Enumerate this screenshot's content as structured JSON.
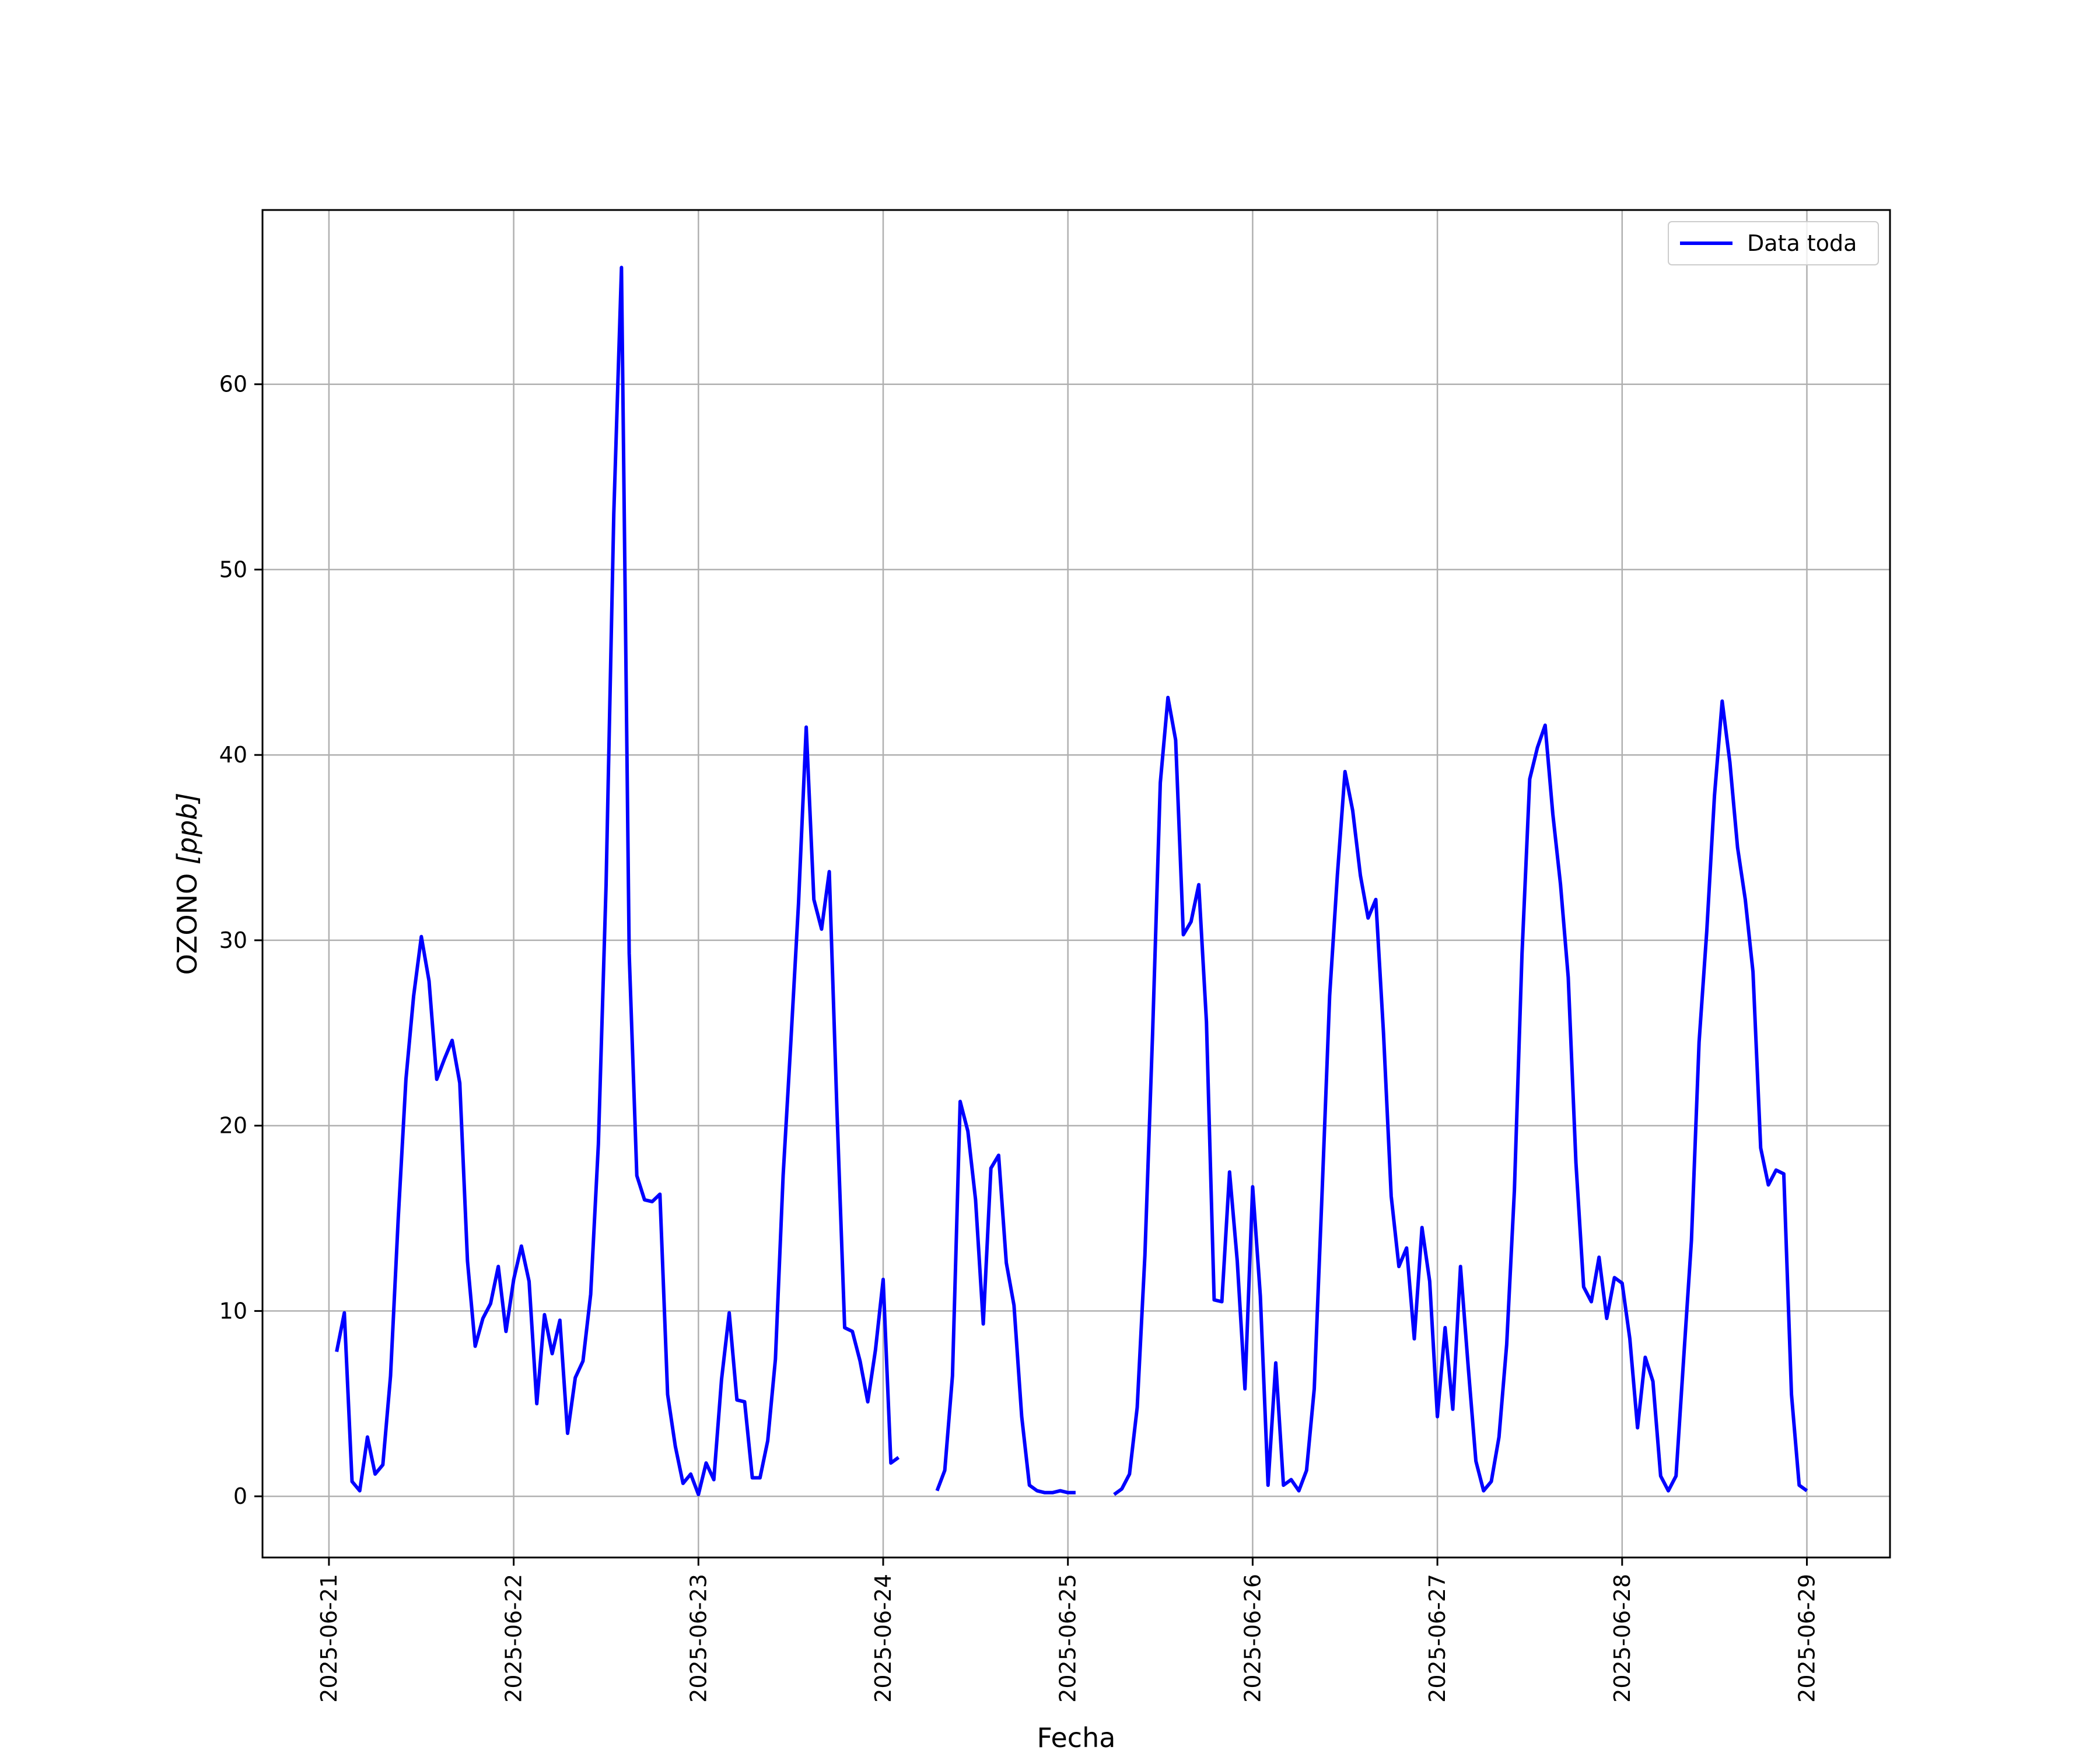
{
  "chart_data": {
    "type": "line",
    "title": "",
    "xlabel": "Fecha",
    "ylabel_text": "OZONO ",
    "ylabel_unit": "[ppb]",
    "ylabel": "OZONO [ppb]",
    "xlim": [
      "2025-06-20 15:22",
      "2025-06-29 10:48"
    ],
    "ylim": [
      -3.3,
      69.4
    ],
    "grid": true,
    "legend_position": "top-right",
    "xticks": [
      "2025-06-21",
      "2025-06-22",
      "2025-06-23",
      "2025-06-24",
      "2025-06-25",
      "2025-06-26",
      "2025-06-27",
      "2025-06-28",
      "2025-06-29"
    ],
    "yticks": [
      0,
      10,
      20,
      30,
      40,
      50,
      60
    ],
    "colors": {
      "series": "#0000ff",
      "grid": "#b0b0b0",
      "axes": "#000000"
    },
    "series": [
      {
        "name": "Data toda",
        "color": "#0000ff",
        "points": [
          [
            "2025-06-21 01:00",
            7.8
          ],
          [
            "2025-06-21 02:00",
            9.9
          ],
          [
            "2025-06-21 03:00",
            0.8
          ],
          [
            "2025-06-21 04:00",
            0.3
          ],
          [
            "2025-06-21 05:00",
            3.2
          ],
          [
            "2025-06-21 06:00",
            1.2
          ],
          [
            "2025-06-21 07:00",
            1.7
          ],
          [
            "2025-06-21 08:00",
            6.5
          ],
          [
            "2025-06-21 09:00",
            15.0
          ],
          [
            "2025-06-21 10:00",
            22.5
          ],
          [
            "2025-06-21 11:00",
            27.0
          ],
          [
            "2025-06-21 12:00",
            30.2
          ],
          [
            "2025-06-21 13:00",
            27.8
          ],
          [
            "2025-06-21 14:00",
            22.5
          ],
          [
            "2025-06-21 15:00",
            23.6
          ],
          [
            "2025-06-21 16:00",
            24.6
          ],
          [
            "2025-06-21 17:00",
            22.3
          ],
          [
            "2025-06-21 18:00",
            12.7
          ],
          [
            "2025-06-21 19:00",
            8.1
          ],
          [
            "2025-06-21 20:00",
            9.6
          ],
          [
            "2025-06-21 21:00",
            10.4
          ],
          [
            "2025-06-21 22:00",
            12.4
          ],
          [
            "2025-06-21 23:00",
            8.9
          ],
          [
            "2025-06-22 00:00",
            11.7
          ],
          [
            "2025-06-22 01:00",
            13.5
          ],
          [
            "2025-06-22 02:00",
            11.6
          ],
          [
            "2025-06-22 03:00",
            5.0
          ],
          [
            "2025-06-22 04:00",
            9.8
          ],
          [
            "2025-06-22 05:00",
            7.7
          ],
          [
            "2025-06-22 06:00",
            9.5
          ],
          [
            "2025-06-22 07:00",
            3.4
          ],
          [
            "2025-06-22 08:00",
            6.4
          ],
          [
            "2025-06-22 09:00",
            7.3
          ],
          [
            "2025-06-22 10:00",
            10.9
          ],
          [
            "2025-06-22 11:00",
            19.0
          ],
          [
            "2025-06-22 12:00",
            33.0
          ],
          [
            "2025-06-22 13:00",
            53.0
          ],
          [
            "2025-06-22 14:00",
            66.3
          ],
          [
            "2025-06-22 15:00",
            29.3
          ],
          [
            "2025-06-22 16:00",
            17.3
          ],
          [
            "2025-06-22 17:00",
            16.0
          ],
          [
            "2025-06-22 18:00",
            15.9
          ],
          [
            "2025-06-22 19:00",
            16.3
          ],
          [
            "2025-06-22 20:00",
            5.5
          ],
          [
            "2025-06-22 21:00",
            2.7
          ],
          [
            "2025-06-22 22:00",
            0.7
          ],
          [
            "2025-06-22 23:00",
            1.2
          ],
          [
            "2025-06-23 00:00",
            0.1
          ],
          [
            "2025-06-23 01:00",
            1.8
          ],
          [
            "2025-06-23 02:00",
            0.9
          ],
          [
            "2025-06-23 03:00",
            6.3
          ],
          [
            "2025-06-23 04:00",
            9.9
          ],
          [
            "2025-06-23 05:00",
            5.2
          ],
          [
            "2025-06-23 06:00",
            5.1
          ],
          [
            "2025-06-23 07:00",
            1.0
          ],
          [
            "2025-06-23 08:00",
            1.0
          ],
          [
            "2025-06-23 09:00",
            3.0
          ],
          [
            "2025-06-23 10:00",
            7.4
          ],
          [
            "2025-06-23 11:00",
            17.3
          ],
          [
            "2025-06-23 12:00",
            24.5
          ],
          [
            "2025-06-23 13:00",
            32.0
          ],
          [
            "2025-06-23 14:00",
            41.5
          ],
          [
            "2025-06-23 15:00",
            32.2
          ],
          [
            "2025-06-23 16:00",
            30.6
          ],
          [
            "2025-06-23 17:00",
            33.7
          ],
          [
            "2025-06-23 18:00",
            20.8
          ],
          [
            "2025-06-23 19:00",
            9.1
          ],
          [
            "2025-06-23 20:00",
            8.9
          ],
          [
            "2025-06-23 21:00",
            7.3
          ],
          [
            "2025-06-23 22:00",
            5.1
          ],
          [
            "2025-06-23 23:00",
            7.9
          ],
          [
            "2025-06-24 00:00",
            11.7
          ],
          [
            "2025-06-24 01:00",
            1.8
          ],
          [
            "2025-06-24 02:00",
            2.1
          ],
          null,
          [
            "2025-06-24 07:00",
            0.3
          ],
          [
            "2025-06-24 08:00",
            1.4
          ],
          [
            "2025-06-24 09:00",
            6.5
          ],
          [
            "2025-06-24 10:00",
            21.3
          ],
          [
            "2025-06-24 11:00",
            19.7
          ],
          [
            "2025-06-24 12:00",
            16.0
          ],
          [
            "2025-06-24 13:00",
            9.3
          ],
          [
            "2025-06-24 14:00",
            17.7
          ],
          [
            "2025-06-24 15:00",
            18.4
          ],
          [
            "2025-06-24 16:00",
            12.6
          ],
          [
            "2025-06-24 17:00",
            10.3
          ],
          [
            "2025-06-24 18:00",
            4.3
          ],
          [
            "2025-06-24 19:00",
            0.6
          ],
          [
            "2025-06-24 20:00",
            0.3
          ],
          [
            "2025-06-24 21:00",
            0.2
          ],
          [
            "2025-06-24 22:00",
            0.2
          ],
          [
            "2025-06-24 23:00",
            0.3
          ],
          [
            "2025-06-25 00:00",
            0.2
          ],
          [
            "2025-06-25 01:00",
            0.2
          ],
          null,
          [
            "2025-06-25 06:00",
            0.1
          ],
          [
            "2025-06-25 07:00",
            0.4
          ],
          [
            "2025-06-25 08:00",
            1.2
          ],
          [
            "2025-06-25 09:00",
            4.8
          ],
          [
            "2025-06-25 10:00",
            13.0
          ],
          [
            "2025-06-25 11:00",
            25.0
          ],
          [
            "2025-06-25 12:00",
            38.5
          ],
          [
            "2025-06-25 13:00",
            43.1
          ],
          [
            "2025-06-25 14:00",
            40.8
          ],
          [
            "2025-06-25 15:00",
            30.3
          ],
          [
            "2025-06-25 16:00",
            31.0
          ],
          [
            "2025-06-25 17:00",
            33.0
          ],
          [
            "2025-06-25 18:00",
            25.6
          ],
          [
            "2025-06-25 19:00",
            10.6
          ],
          [
            "2025-06-25 20:00",
            10.5
          ],
          [
            "2025-06-25 21:00",
            17.5
          ],
          [
            "2025-06-25 22:00",
            12.7
          ],
          [
            "2025-06-25 23:00",
            5.8
          ],
          [
            "2025-06-26 00:00",
            16.7
          ],
          [
            "2025-06-26 01:00",
            10.8
          ],
          [
            "2025-06-26 02:00",
            0.6
          ],
          [
            "2025-06-26 03:00",
            7.2
          ],
          [
            "2025-06-26 04:00",
            0.6
          ],
          [
            "2025-06-26 05:00",
            0.9
          ],
          [
            "2025-06-26 06:00",
            0.3
          ],
          [
            "2025-06-26 07:00",
            1.4
          ],
          [
            "2025-06-26 08:00",
            5.8
          ],
          [
            "2025-06-26 09:00",
            16.2
          ],
          [
            "2025-06-26 10:00",
            27.0
          ],
          [
            "2025-06-26 11:00",
            33.5
          ],
          [
            "2025-06-26 12:00",
            39.1
          ],
          [
            "2025-06-26 13:00",
            37.0
          ],
          [
            "2025-06-26 14:00",
            33.5
          ],
          [
            "2025-06-26 15:00",
            31.2
          ],
          [
            "2025-06-26 16:00",
            32.2
          ],
          [
            "2025-06-26 17:00",
            25.0
          ],
          [
            "2025-06-26 18:00",
            16.2
          ],
          [
            "2025-06-26 19:00",
            12.4
          ],
          [
            "2025-06-26 20:00",
            13.4
          ],
          [
            "2025-06-26 21:00",
            8.5
          ],
          [
            "2025-06-26 22:00",
            14.5
          ],
          [
            "2025-06-26 23:00",
            11.6
          ],
          [
            "2025-06-27 00:00",
            4.3
          ],
          [
            "2025-06-27 01:00",
            9.1
          ],
          [
            "2025-06-27 02:00",
            4.7
          ],
          [
            "2025-06-27 03:00",
            12.4
          ],
          [
            "2025-06-27 04:00",
            7.0
          ],
          [
            "2025-06-27 05:00",
            1.9
          ],
          [
            "2025-06-27 06:00",
            0.3
          ],
          [
            "2025-06-27 07:00",
            0.8
          ],
          [
            "2025-06-27 08:00",
            3.2
          ],
          [
            "2025-06-27 09:00",
            8.2
          ],
          [
            "2025-06-27 10:00",
            16.5
          ],
          [
            "2025-06-27 11:00",
            29.3
          ],
          [
            "2025-06-27 12:00",
            38.7
          ],
          [
            "2025-06-27 13:00",
            40.4
          ],
          [
            "2025-06-27 14:00",
            41.6
          ],
          [
            "2025-06-27 15:00",
            36.8
          ],
          [
            "2025-06-27 16:00",
            33.0
          ],
          [
            "2025-06-27 17:00",
            28.0
          ],
          [
            "2025-06-27 18:00",
            18.0
          ],
          [
            "2025-06-27 19:00",
            11.3
          ],
          [
            "2025-06-27 20:00",
            10.5
          ],
          [
            "2025-06-27 21:00",
            12.9
          ],
          [
            "2025-06-27 22:00",
            9.6
          ],
          [
            "2025-06-27 23:00",
            11.8
          ],
          [
            "2025-06-28 00:00",
            11.5
          ],
          [
            "2025-06-28 01:00",
            8.5
          ],
          [
            "2025-06-28 02:00",
            3.7
          ],
          [
            "2025-06-28 03:00",
            7.5
          ],
          [
            "2025-06-28 04:00",
            6.2
          ],
          [
            "2025-06-28 05:00",
            1.1
          ],
          [
            "2025-06-28 06:00",
            0.3
          ],
          [
            "2025-06-28 07:00",
            1.1
          ],
          [
            "2025-06-28 08:00",
            7.5
          ],
          [
            "2025-06-28 09:00",
            13.8
          ],
          [
            "2025-06-28 10:00",
            24.5
          ],
          [
            "2025-06-28 11:00",
            30.5
          ],
          [
            "2025-06-28 12:00",
            37.8
          ],
          [
            "2025-06-28 13:00",
            42.9
          ],
          [
            "2025-06-28 14:00",
            39.6
          ],
          [
            "2025-06-28 15:00",
            35.0
          ],
          [
            "2025-06-28 16:00",
            32.2
          ],
          [
            "2025-06-28 17:00",
            28.3
          ],
          [
            "2025-06-28 18:00",
            18.8
          ],
          [
            "2025-06-28 19:00",
            16.8
          ],
          [
            "2025-06-28 20:00",
            17.6
          ],
          [
            "2025-06-28 21:00",
            17.4
          ],
          [
            "2025-06-28 22:00",
            5.5
          ],
          [
            "2025-06-28 23:00",
            0.6
          ],
          [
            "2025-06-29 00:00",
            0.3
          ]
        ]
      }
    ]
  }
}
